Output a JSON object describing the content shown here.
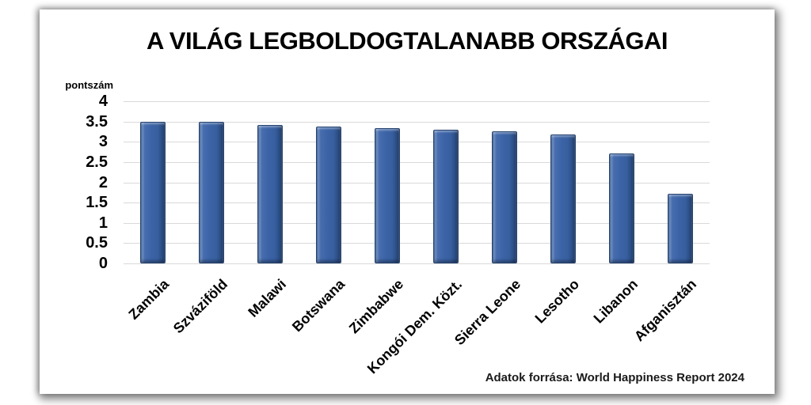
{
  "card": {
    "title": "A VILÁG LEGBOLDOGTALANABB ORSZÁGAI",
    "source_note": "Adatok forrása: World Happiness Report 2024"
  },
  "chart_data": {
    "type": "bar",
    "title": "A VILÁG LEGBOLDOGTALANABB ORSZÁGAI",
    "xlabel": "",
    "ylabel": "pontszám",
    "categories": [
      "Zambia",
      "Szváziföld",
      "Malawi",
      "Botswana",
      "Zimbabwe",
      "Kongói Dem. Közt.",
      "Sierra Leone",
      "Lesotho",
      "Libanon",
      "Afganisztán"
    ],
    "values": [
      3.5,
      3.5,
      3.42,
      3.38,
      3.34,
      3.3,
      3.25,
      3.19,
      2.71,
      1.72
    ],
    "ylim": [
      0,
      4
    ],
    "ytick_step": 0.5,
    "yticks": [
      "4",
      "3.5",
      "3",
      "2.5",
      "2",
      "1.5",
      "1",
      "0.5",
      "0"
    ],
    "grid": true,
    "legend_position": "none",
    "source": "Adatok forrása: World Happiness Report 2024",
    "colors": {
      "bar_fill": "#3B63A6",
      "bar_edge": "#27436F",
      "gridline": "#D9D9D9",
      "text": "#000000",
      "background": "#FFFFFF"
    }
  }
}
